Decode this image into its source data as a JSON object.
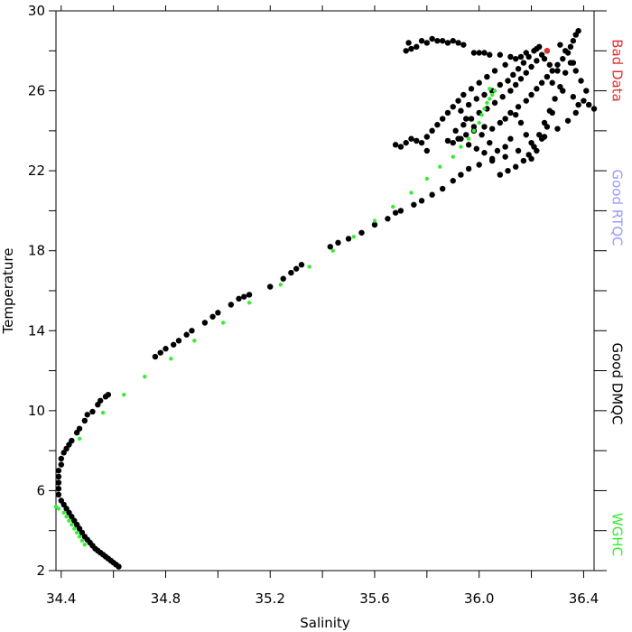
{
  "chart_data": {
    "type": "scatter",
    "xlabel": "Salinity",
    "ylabel": "Temperature",
    "xlim": [
      34.38,
      36.44
    ],
    "ylim": [
      2,
      30
    ],
    "x_ticks": [
      "34.4",
      "34.8",
      "35.2",
      "35.6",
      "36.0",
      "36.4"
    ],
    "x_tick_values": [
      34.4,
      34.8,
      35.2,
      35.6,
      36.0,
      36.4
    ],
    "x_minor_tick_values": [
      34.6,
      35.0,
      35.4,
      35.8,
      36.2
    ],
    "y_ticks": [
      "2",
      "6",
      "10",
      "14",
      "18",
      "22",
      "26",
      "30"
    ],
    "y_tick_values": [
      2,
      6,
      10,
      14,
      18,
      22,
      26,
      30
    ],
    "y_minor_tick_values": [
      4,
      8,
      12,
      16,
      20,
      24,
      28
    ],
    "grid": false,
    "legend_position": "right, vertical text",
    "legend": [
      {
        "label": "Bad Data",
        "color": "#e03030"
      },
      {
        "label": "Good RTQC",
        "color": "#9999ff"
      },
      {
        "label": "Good DMQC",
        "color": "#000000"
      },
      {
        "label": "WGHC",
        "color": "#33ee33"
      }
    ],
    "series": [
      {
        "name": "Good DMQC",
        "color": "#000000",
        "points": [
          [
            34.62,
            2.2
          ],
          [
            34.61,
            2.3
          ],
          [
            34.6,
            2.4
          ],
          [
            34.59,
            2.5
          ],
          [
            34.58,
            2.6
          ],
          [
            34.57,
            2.7
          ],
          [
            34.56,
            2.8
          ],
          [
            34.55,
            2.9
          ],
          [
            34.54,
            3.0
          ],
          [
            34.53,
            3.1
          ],
          [
            34.52,
            3.25
          ],
          [
            34.51,
            3.4
          ],
          [
            34.5,
            3.55
          ],
          [
            34.49,
            3.7
          ],
          [
            34.48,
            3.9
          ],
          [
            34.47,
            4.1
          ],
          [
            34.46,
            4.3
          ],
          [
            34.45,
            4.5
          ],
          [
            34.44,
            4.7
          ],
          [
            34.43,
            4.9
          ],
          [
            34.42,
            5.1
          ],
          [
            34.41,
            5.3
          ],
          [
            34.4,
            5.5
          ],
          [
            34.39,
            5.8
          ],
          [
            34.39,
            6.1
          ],
          [
            34.39,
            6.4
          ],
          [
            34.39,
            6.7
          ],
          [
            34.39,
            7.0
          ],
          [
            34.4,
            7.3
          ],
          [
            34.4,
            7.6
          ],
          [
            34.41,
            7.9
          ],
          [
            34.42,
            8.1
          ],
          [
            34.43,
            8.3
          ],
          [
            34.44,
            8.5
          ],
          [
            34.46,
            8.9
          ],
          [
            34.47,
            9.1
          ],
          [
            34.49,
            9.5
          ],
          [
            34.5,
            9.8
          ],
          [
            34.52,
            9.95
          ],
          [
            34.54,
            10.3
          ],
          [
            34.55,
            10.5
          ],
          [
            34.57,
            10.7
          ],
          [
            34.58,
            10.8
          ],
          [
            34.76,
            12.7
          ],
          [
            34.78,
            12.9
          ],
          [
            34.8,
            13.1
          ],
          [
            34.83,
            13.3
          ],
          [
            34.85,
            13.5
          ],
          [
            34.88,
            13.8
          ],
          [
            34.9,
            14.0
          ],
          [
            34.95,
            14.4
          ],
          [
            34.98,
            14.7
          ],
          [
            35.0,
            14.9
          ],
          [
            35.05,
            15.3
          ],
          [
            35.08,
            15.6
          ],
          [
            35.1,
            15.7
          ],
          [
            35.12,
            15.8
          ],
          [
            35.2,
            16.2
          ],
          [
            35.25,
            16.6
          ],
          [
            35.28,
            16.9
          ],
          [
            35.3,
            17.1
          ],
          [
            35.32,
            17.3
          ],
          [
            35.43,
            18.2
          ],
          [
            35.46,
            18.4
          ],
          [
            35.5,
            18.6
          ],
          [
            35.55,
            18.9
          ],
          [
            35.6,
            19.3
          ],
          [
            35.65,
            19.6
          ],
          [
            35.68,
            19.9
          ],
          [
            35.7,
            20.0
          ],
          [
            35.75,
            20.3
          ],
          [
            35.78,
            20.5
          ],
          [
            35.82,
            20.8
          ],
          [
            35.86,
            21.1
          ],
          [
            35.9,
            21.5
          ],
          [
            35.93,
            21.8
          ],
          [
            35.96,
            22.1
          ],
          [
            36.0,
            22.3
          ],
          [
            36.05,
            22.5
          ],
          [
            36.1,
            22.7
          ],
          [
            36.15,
            23.0
          ],
          [
            36.2,
            23.4
          ],
          [
            36.25,
            23.7
          ],
          [
            36.3,
            24.1
          ],
          [
            36.34,
            24.5
          ],
          [
            36.37,
            24.9
          ],
          [
            36.38,
            25.3
          ],
          [
            36.36,
            25.7
          ],
          [
            36.32,
            26.0
          ],
          [
            36.28,
            26.4
          ],
          [
            35.88,
            23.5
          ],
          [
            35.9,
            23.4
          ],
          [
            35.92,
            23.6
          ],
          [
            35.95,
            23.8
          ],
          [
            35.98,
            24.0
          ],
          [
            36.02,
            24.2
          ],
          [
            36.05,
            24.1
          ],
          [
            36.08,
            24.4
          ],
          [
            36.1,
            24.6
          ],
          [
            36.12,
            24.9
          ],
          [
            36.15,
            25.2
          ],
          [
            36.18,
            25.5
          ],
          [
            36.2,
            25.8
          ],
          [
            36.22,
            26.1
          ],
          [
            36.24,
            26.4
          ],
          [
            36.26,
            26.7
          ],
          [
            36.28,
            27.0
          ],
          [
            36.3,
            27.3
          ],
          [
            36.32,
            27.6
          ],
          [
            36.34,
            27.9
          ],
          [
            36.35,
            28.2
          ],
          [
            36.36,
            28.5
          ],
          [
            36.37,
            28.8
          ],
          [
            36.38,
            29.0
          ],
          [
            36.36,
            27.4
          ],
          [
            36.33,
            26.9
          ],
          [
            36.31,
            26.2
          ],
          [
            36.29,
            25.6
          ],
          [
            36.27,
            25.0
          ],
          [
            36.25,
            24.4
          ],
          [
            36.23,
            23.8
          ],
          [
            36.21,
            23.2
          ],
          [
            36.19,
            22.8
          ],
          [
            36.17,
            22.5
          ],
          [
            36.14,
            22.2
          ],
          [
            36.11,
            22.0
          ],
          [
            36.08,
            21.8
          ],
          [
            36.05,
            22.6
          ],
          [
            36.02,
            22.9
          ],
          [
            35.99,
            23.1
          ],
          [
            35.96,
            23.3
          ],
          [
            35.93,
            23.6
          ],
          [
            35.91,
            24.0
          ],
          [
            35.94,
            24.3
          ],
          [
            35.97,
            24.6
          ],
          [
            36.0,
            24.9
          ],
          [
            36.03,
            25.1
          ],
          [
            36.06,
            25.4
          ],
          [
            36.09,
            25.7
          ],
          [
            36.12,
            26.0
          ],
          [
            36.14,
            26.3
          ],
          [
            36.16,
            26.6
          ],
          [
            36.18,
            26.9
          ],
          [
            36.2,
            27.2
          ],
          [
            36.22,
            27.5
          ],
          [
            36.24,
            27.8
          ],
          [
            36.26,
            28.0
          ],
          [
            36.22,
            28.1
          ],
          [
            36.18,
            27.9
          ],
          [
            36.14,
            27.6
          ],
          [
            36.1,
            27.3
          ],
          [
            36.06,
            27.0
          ],
          [
            36.03,
            26.7
          ],
          [
            36.0,
            26.4
          ],
          [
            35.97,
            26.1
          ],
          [
            35.94,
            25.8
          ],
          [
            35.92,
            25.5
          ],
          [
            35.9,
            25.2
          ],
          [
            35.88,
            24.9
          ],
          [
            35.86,
            24.6
          ],
          [
            35.84,
            24.3
          ],
          [
            35.82,
            24.0
          ],
          [
            35.8,
            23.7
          ],
          [
            35.78,
            23.4
          ],
          [
            35.76,
            23.5
          ],
          [
            35.74,
            23.6
          ],
          [
            35.72,
            23.4
          ],
          [
            35.7,
            23.2
          ],
          [
            35.68,
            23.3
          ],
          [
            35.8,
            23.0
          ],
          [
            36.4,
            25.5
          ],
          [
            36.42,
            25.3
          ],
          [
            36.44,
            25.1
          ],
          [
            36.41,
            26.0
          ],
          [
            36.39,
            26.5
          ],
          [
            36.37,
            27.0
          ],
          [
            36.35,
            27.4
          ],
          [
            36.33,
            28.0
          ],
          [
            36.31,
            28.3
          ],
          [
            36.3,
            27.0
          ],
          [
            36.28,
            24.9
          ],
          [
            36.26,
            24.2
          ],
          [
            36.24,
            23.6
          ],
          [
            36.22,
            23.0
          ],
          [
            36.2,
            22.6
          ],
          [
            36.18,
            23.8
          ],
          [
            36.16,
            24.4
          ],
          [
            36.14,
            24.8
          ],
          [
            36.12,
            23.6
          ],
          [
            36.1,
            23.2
          ],
          [
            36.07,
            23.0
          ],
          [
            36.04,
            23.4
          ],
          [
            36.01,
            23.8
          ],
          [
            35.98,
            24.2
          ],
          [
            35.95,
            24.6
          ],
          [
            35.93,
            25.0
          ],
          [
            35.96,
            25.3
          ],
          [
            35.99,
            25.6
          ],
          [
            36.02,
            25.8
          ],
          [
            36.05,
            26.0
          ],
          [
            36.08,
            26.3
          ],
          [
            36.11,
            26.5
          ],
          [
            36.13,
            26.8
          ],
          [
            36.15,
            27.1
          ],
          [
            36.17,
            27.4
          ],
          [
            36.19,
            27.7
          ],
          [
            36.21,
            28.0
          ],
          [
            36.23,
            28.2
          ],
          [
            36.25,
            27.6
          ],
          [
            36.27,
            27.3
          ],
          [
            35.86,
            28.5
          ],
          [
            35.88,
            28.4
          ],
          [
            35.9,
            28.5
          ],
          [
            35.92,
            28.4
          ],
          [
            35.94,
            28.3
          ],
          [
            35.82,
            28.6
          ],
          [
            35.84,
            28.5
          ],
          [
            35.78,
            28.5
          ],
          [
            35.8,
            28.4
          ],
          [
            35.76,
            28.2
          ],
          [
            35.74,
            28.1
          ],
          [
            35.72,
            28.0
          ],
          [
            35.73,
            28.4
          ],
          [
            35.98,
            27.9
          ],
          [
            36.0,
            27.9
          ],
          [
            36.02,
            27.9
          ],
          [
            36.04,
            27.8
          ],
          [
            36.08,
            27.8
          ],
          [
            36.12,
            27.7
          ],
          [
            36.16,
            27.7
          ]
        ]
      },
      {
        "name": "WGHC",
        "color": "#33ee33",
        "points": [
          [
            34.38,
            5.2
          ],
          [
            34.39,
            5.1
          ],
          [
            34.41,
            4.9
          ],
          [
            34.42,
            4.7
          ],
          [
            34.43,
            4.5
          ],
          [
            34.44,
            4.3
          ],
          [
            34.45,
            4.1
          ],
          [
            34.46,
            3.9
          ],
          [
            34.47,
            3.7
          ],
          [
            34.48,
            3.5
          ],
          [
            34.49,
            3.3
          ],
          [
            34.47,
            8.6
          ],
          [
            34.56,
            9.9
          ],
          [
            34.64,
            10.8
          ],
          [
            34.72,
            11.7
          ],
          [
            34.82,
            12.6
          ],
          [
            34.91,
            13.5
          ],
          [
            35.02,
            14.4
          ],
          [
            35.12,
            15.4
          ],
          [
            35.24,
            16.3
          ],
          [
            35.35,
            17.2
          ],
          [
            35.44,
            18.0
          ],
          [
            35.52,
            18.7
          ],
          [
            35.6,
            19.5
          ],
          [
            35.67,
            20.2
          ],
          [
            35.74,
            20.9
          ],
          [
            35.8,
            21.6
          ],
          [
            35.85,
            22.2
          ],
          [
            35.9,
            22.7
          ],
          [
            35.93,
            23.2
          ],
          [
            35.96,
            23.6
          ],
          [
            35.98,
            24.0
          ],
          [
            36.0,
            24.4
          ],
          [
            36.01,
            24.8
          ],
          [
            36.02,
            25.1
          ],
          [
            36.03,
            25.4
          ],
          [
            36.04,
            25.6
          ],
          [
            36.05,
            25.8
          ],
          [
            36.06,
            26.0
          ],
          [
            36.04,
            26.1
          ]
        ]
      },
      {
        "name": "Bad Data",
        "color": "#e03030",
        "points": [
          [
            36.26,
            28.0
          ]
        ]
      }
    ]
  }
}
